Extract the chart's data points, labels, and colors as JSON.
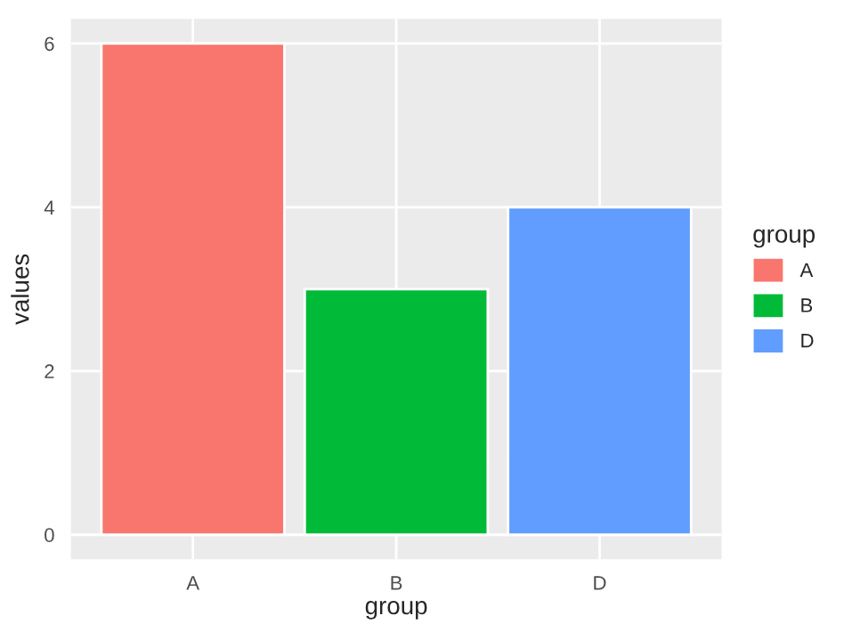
{
  "chart_data": {
    "type": "bar",
    "xlabel": "group",
    "ylabel": "values",
    "legend_title": "group",
    "categories": [
      "A",
      "B",
      "D"
    ],
    "series": [
      {
        "name": "A",
        "color": "#f8766d",
        "values": [
          6,
          null,
          null
        ]
      },
      {
        "name": "B",
        "color": "#00ba38",
        "values": [
          null,
          3,
          null
        ]
      },
      {
        "name": "D",
        "color": "#619cff",
        "values": [
          null,
          null,
          4
        ]
      }
    ],
    "ylim": [
      -0.3,
      6.3
    ],
    "yticks": [
      0,
      2,
      4,
      6
    ],
    "grid": true,
    "legend": "right"
  }
}
